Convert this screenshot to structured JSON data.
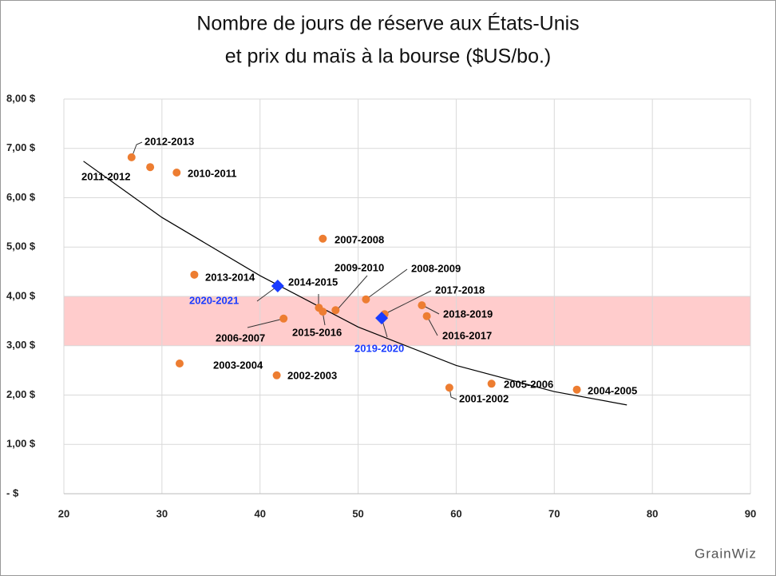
{
  "chart_data": {
    "type": "scatter",
    "title_lines": [
      "Nombre de jours de réserve aux États-Unis",
      "et prix du maïs à la bourse ($US/bo.)"
    ],
    "xlim": [
      20,
      90
    ],
    "xticks": [
      20,
      30,
      40,
      50,
      60,
      70,
      80,
      90
    ],
    "ylim": [
      0,
      8
    ],
    "yticks": [
      {
        "value": 0,
        "label": "-   $"
      },
      {
        "value": 1,
        "label": "1,00 $"
      },
      {
        "value": 2,
        "label": "2,00 $"
      },
      {
        "value": 3,
        "label": "3,00 $"
      },
      {
        "value": 4,
        "label": "4,00 $"
      },
      {
        "value": 5,
        "label": "5,00 $"
      },
      {
        "value": 6,
        "label": "6,00 $"
      },
      {
        "value": 7,
        "label": "7,00 $"
      },
      {
        "value": 8,
        "label": "8,00 $"
      }
    ],
    "grid": true,
    "shaded_range": [
      3,
      4
    ],
    "shaded_color": "#ffcccc",
    "series": [
      {
        "color": "#ed7d31",
        "marker": "circle",
        "label_color": "#000000",
        "x": [
          26.9,
          28.8,
          31.5,
          46.4,
          33.3,
          47.7,
          50.8,
          46.0,
          46.4,
          42.4,
          52.7,
          56.5,
          57.0,
          31.8,
          41.7,
          59.3,
          63.6,
          72.3
        ],
        "y": [
          6.82,
          6.62,
          6.51,
          5.17,
          4.44,
          3.72,
          3.94,
          3.77,
          3.69,
          3.55,
          3.64,
          3.82,
          3.6,
          2.64,
          2.4,
          2.15,
          2.23,
          2.11
        ],
        "point_labels": [
          "2012-2013",
          "2011-2012",
          "2010-2011",
          "2007-2008",
          "2013-2014",
          "2009-2010",
          "2008-2009",
          "2014-2015",
          "2015-2016",
          "2006-2007",
          "2017-2018",
          "2018-2019",
          "2016-2017",
          "2003-2004",
          "2002-2003",
          "2001-2002",
          "2005-2006",
          "2004-2005"
        ]
      },
      {
        "color": "#1a3cff",
        "marker": "diamond",
        "label_color": "#1a3cff",
        "x": [
          41.8,
          52.4
        ],
        "y": [
          4.21,
          3.56
        ],
        "point_labels": [
          "2020-2021",
          "2019-2020"
        ]
      }
    ],
    "trendline": {
      "color": "#000000",
      "x": [
        22,
        30,
        40,
        50,
        60,
        70,
        77.4
      ],
      "y": [
        6.74,
        5.6,
        4.42,
        3.38,
        2.6,
        2.07,
        1.8
      ]
    },
    "logo": "GrainWiz"
  }
}
